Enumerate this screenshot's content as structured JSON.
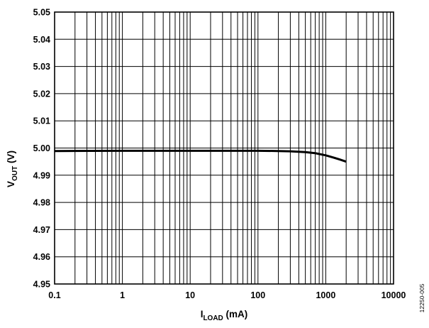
{
  "chart_data": {
    "type": "line",
    "x_scale": "log",
    "xlim": [
      0.1,
      10000
    ],
    "ylim": [
      4.95,
      5.05
    ],
    "grid": true,
    "x_ticks": [
      0.1,
      1,
      10,
      100,
      1000,
      10000
    ],
    "x_tick_labels": [
      "0.1",
      "1",
      "10",
      "100",
      "1000",
      "10000"
    ],
    "y_ticks": [
      4.95,
      4.96,
      4.97,
      4.98,
      4.99,
      5.0,
      5.01,
      5.02,
      5.03,
      5.04,
      5.05
    ],
    "y_tick_labels": [
      "4.95",
      "4.96",
      "4.97",
      "4.98",
      "4.99",
      "5.00",
      "5.01",
      "5.02",
      "5.03",
      "5.04",
      "5.05"
    ],
    "xlabel": {
      "main": "I",
      "sub": "LOAD",
      "rest": " (mA)"
    },
    "ylabel": {
      "main": "V",
      "sub": "OUT",
      "rest": " (V)"
    },
    "figure_id": "12250-005",
    "series": [
      {
        "color": "#000000",
        "x": [
          0.1,
          0.3,
          1,
          3,
          10,
          30,
          100,
          200,
          300,
          500,
          700,
          1000,
          1300,
          1600,
          2000
        ],
        "y": [
          4.9989,
          4.99895,
          4.999,
          4.999,
          4.999,
          4.999,
          4.999,
          4.9989,
          4.9988,
          4.9985,
          4.9981,
          4.9973,
          4.9965,
          4.9958,
          4.995
        ]
      }
    ]
  }
}
